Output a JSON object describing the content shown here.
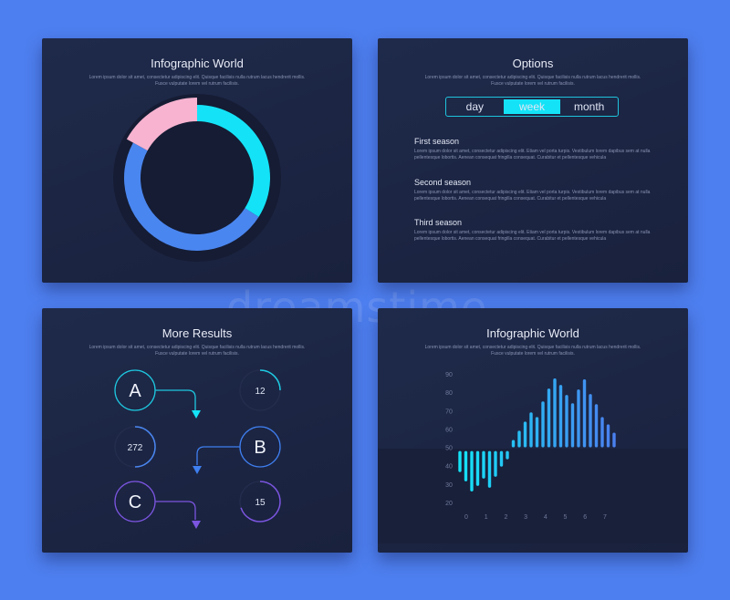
{
  "colors": {
    "background": "#4e7ff0",
    "panel": "#1c2542",
    "cyan": "#14e3f7",
    "blue": "#4a86f0",
    "pink": "#f7b3d0",
    "purple": "#7b55e0"
  },
  "lorem": "Lorem ipsum dolor sit amet, consectetur adipiscing elit. Quisque facilisis nulla rutrum lacus hendrerit mollis. Fusce vulputate lorem vel rutrum facilisis.",
  "panel1": {
    "title": "Infographic World",
    "donut": [
      {
        "segment": "pink",
        "value": 17
      },
      {
        "segment": "cyan",
        "value": 34
      },
      {
        "segment": "blue",
        "value": 49
      }
    ]
  },
  "panel2": {
    "title": "Options",
    "toggle": [
      {
        "label": "day",
        "active": false
      },
      {
        "label": "week",
        "active": true
      },
      {
        "label": "month",
        "active": false
      }
    ],
    "seasons": [
      {
        "title": "First season",
        "text": "Lorem ipsum dolor sit amet, consectetur adipiscing elit. Etiam vel porta turpis. Vestibulum lorem dapibus sem at nulla pellentesque lobortis. Aenean consequat fringilla consequat. Curabitur et pellentesque vehicula"
      },
      {
        "title": "Second season",
        "text": "Lorem ipsum dolor sit amet, consectetur adipiscing elit. Etiam vel porta turpis. Vestibulum lorem dapibus sem at nulla pellentesque lobortis. Aenean consequat fringilla consequat. Curabitur et pellentesque vehicula"
      },
      {
        "title": "Third season",
        "text": "Lorem ipsum dolor sit amet, consectetur adipiscing elit. Etiam vel porta turpis. Vestibulum lorem dapibus sem at nulla pellentesque lobortis. Aenean consequat fringilla consequat. Curabitur et pellentesque vehicula"
      }
    ]
  },
  "panel3": {
    "title": "More Results",
    "steps": [
      "A",
      "B",
      "C"
    ],
    "gauges": [
      {
        "label": "12",
        "fill": 0.25
      },
      {
        "label": "272",
        "fill": 0.5
      },
      {
        "label": "15",
        "fill": 0.7
      }
    ]
  },
  "panel4": {
    "title": "Infographic World"
  },
  "chart_data": {
    "type": "bar",
    "baseline": 49,
    "yticks": [
      "90",
      "80",
      "70",
      "60",
      "50",
      "40",
      "30",
      "20"
    ],
    "ylim": [
      20,
      90
    ],
    "xticks": [
      "0",
      "1",
      "2",
      "3",
      "4",
      "5",
      "6",
      "7"
    ],
    "values": [
      36.5,
      31.5,
      26,
      29,
      33,
      28,
      34,
      39.5,
      43.5,
      54,
      59,
      64,
      69,
      66.5,
      75,
      82,
      87.5,
      84,
      78.5,
      74,
      81.5,
      87,
      79,
      73.5,
      66.5,
      62.5,
      58
    ]
  },
  "watermark": "dreamstime"
}
